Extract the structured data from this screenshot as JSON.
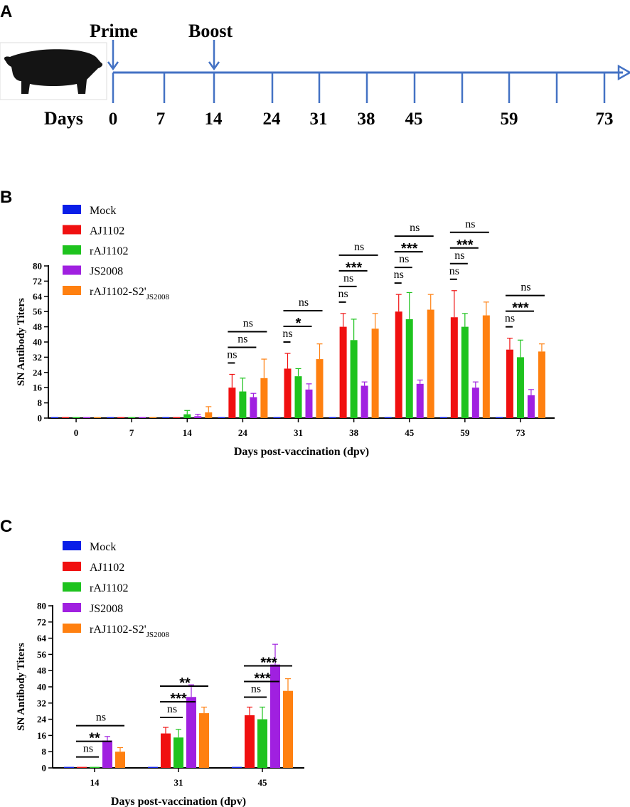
{
  "panels": {
    "a": "A",
    "b": "B",
    "c": "C"
  },
  "timeline": {
    "prime_label": "Prime",
    "boost_label": "Boost",
    "days_label": "Days",
    "days": [
      "0",
      "7",
      "14",
      "24",
      "31",
      "38",
      "45",
      "59",
      "73"
    ]
  },
  "colors": {
    "Mock": "#0a1ee8",
    "AJ1102": "#f01010",
    "rAJ1102": "#1ec31e",
    "JS2008": "#a020e0",
    "rAJ1102-S2'": "#ff8010",
    "timeline": "#4472c4"
  },
  "legend": {
    "items": [
      "Mock",
      "AJ1102",
      "rAJ1102",
      "JS2008",
      "rAJ1102-S2'"
    ],
    "subscript": "JS2008"
  },
  "chart_data": [
    {
      "type": "bar",
      "panel": "B",
      "title": "",
      "xlabel": "Days post-vaccination (dpv)",
      "ylabel": "SN Antibody Titers",
      "ylim": [
        0,
        80
      ],
      "yticks": [
        "0",
        "8",
        "16",
        "24",
        "32",
        "40",
        "48",
        "56",
        "64",
        "72",
        "80"
      ],
      "categories": [
        "0",
        "7",
        "14",
        "24",
        "31",
        "38",
        "45",
        "59",
        "73"
      ],
      "series": [
        {
          "name": "Mock",
          "values": [
            0.5,
            0.5,
            0.5,
            0.5,
            0.5,
            0.5,
            0.5,
            0.5,
            0.5
          ],
          "errors": [
            0,
            0,
            0,
            0,
            0,
            0,
            0,
            0,
            0
          ]
        },
        {
          "name": "AJ1102",
          "values": [
            0.5,
            0.5,
            0.5,
            16,
            26,
            48,
            56,
            53,
            36
          ],
          "errors": [
            0,
            0,
            0,
            7,
            8,
            7,
            9,
            14,
            6
          ]
        },
        {
          "name": "rAJ1102",
          "values": [
            0.5,
            0.5,
            2,
            14,
            22,
            41,
            52,
            48,
            32
          ],
          "errors": [
            0,
            0,
            2,
            7,
            4,
            11,
            14,
            7,
            9
          ]
        },
        {
          "name": "JS2008",
          "values": [
            0.5,
            0.5,
            1,
            11,
            15,
            17,
            18,
            16,
            12
          ],
          "errors": [
            0,
            0,
            1,
            2,
            3,
            2,
            2,
            3,
            3
          ]
        },
        {
          "name": "rAJ1102-S2'",
          "values": [
            0.5,
            0.5,
            3,
            21,
            31,
            47,
            57,
            54,
            35
          ],
          "errors": [
            0,
            0,
            3,
            10,
            8,
            8,
            8,
            7,
            4
          ]
        }
      ],
      "significance": [
        {
          "group": 3,
          "to": 1,
          "label": "ns"
        },
        {
          "group": 3,
          "to": 3,
          "label": "ns"
        },
        {
          "group": 3,
          "to": 4,
          "label": "ns"
        },
        {
          "group": 4,
          "to": 1,
          "label": "ns"
        },
        {
          "group": 4,
          "to": 3,
          "label": "*"
        },
        {
          "group": 4,
          "to": 4,
          "label": "ns"
        },
        {
          "group": 5,
          "to": 1,
          "label": "ns"
        },
        {
          "group": 5,
          "to": 2,
          "label": "ns"
        },
        {
          "group": 5,
          "to": 3,
          "label": "***"
        },
        {
          "group": 5,
          "to": 4,
          "label": "ns"
        },
        {
          "group": 6,
          "to": 1,
          "label": "ns"
        },
        {
          "group": 6,
          "to": 2,
          "label": "ns"
        },
        {
          "group": 6,
          "to": 3,
          "label": "***"
        },
        {
          "group": 6,
          "to": 4,
          "label": "ns"
        },
        {
          "group": 7,
          "to": 1,
          "label": "ns"
        },
        {
          "group": 7,
          "to": 2,
          "label": "ns"
        },
        {
          "group": 7,
          "to": 3,
          "label": "***"
        },
        {
          "group": 7,
          "to": 4,
          "label": "ns"
        },
        {
          "group": 8,
          "to": 1,
          "label": "ns"
        },
        {
          "group": 8,
          "to": 3,
          "label": "***"
        },
        {
          "group": 8,
          "to": 4,
          "label": "ns"
        }
      ]
    },
    {
      "type": "bar",
      "panel": "C",
      "title": "",
      "xlabel": "Days post-vaccination (dpv)",
      "ylabel": "SN Antibody Titers",
      "ylim": [
        0,
        80
      ],
      "yticks": [
        "0",
        "8",
        "16",
        "24",
        "32",
        "40",
        "48",
        "56",
        "64",
        "72",
        "80"
      ],
      "categories": [
        "14",
        "31",
        "45"
      ],
      "series": [
        {
          "name": "Mock",
          "values": [
            0.5,
            0.5,
            0.5
          ],
          "errors": [
            0,
            0,
            0
          ]
        },
        {
          "name": "AJ1102",
          "values": [
            0.5,
            17,
            26
          ],
          "errors": [
            0,
            3,
            4
          ]
        },
        {
          "name": "rAJ1102",
          "values": [
            0.5,
            15,
            24
          ],
          "errors": [
            0,
            4,
            6
          ]
        },
        {
          "name": "JS2008",
          "values": [
            13.5,
            35,
            51
          ],
          "errors": [
            2,
            6,
            10
          ]
        },
        {
          "name": "rAJ1102-S2'",
          "values": [
            8,
            27,
            38
          ],
          "errors": [
            2,
            3,
            6
          ]
        }
      ],
      "significance": [
        {
          "group": 0,
          "to": 2,
          "label": "ns"
        },
        {
          "group": 0,
          "to": 3,
          "label": "**"
        },
        {
          "group": 0,
          "to": 4,
          "label": "ns"
        },
        {
          "group": 1,
          "to": 2,
          "label": "ns"
        },
        {
          "group": 1,
          "to": 3,
          "label": "***"
        },
        {
          "group": 1,
          "to": 4,
          "label": "**"
        },
        {
          "group": 2,
          "to": 2,
          "label": "ns"
        },
        {
          "group": 2,
          "to": 3,
          "label": "***"
        },
        {
          "group": 2,
          "to": 4,
          "label": "***"
        }
      ]
    }
  ]
}
